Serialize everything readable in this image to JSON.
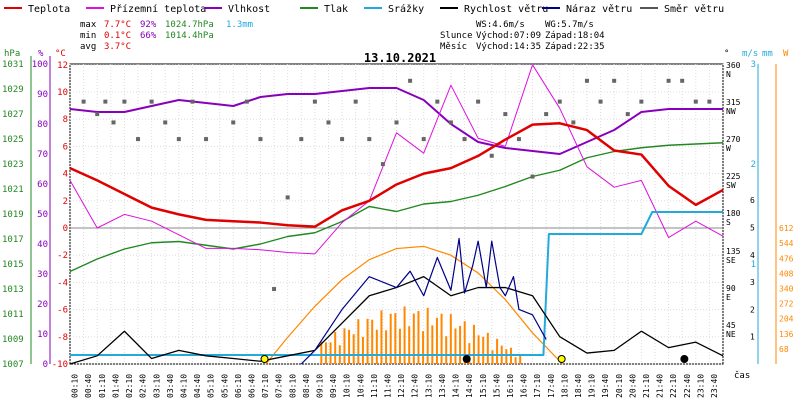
{
  "chart_data": {
    "type": "line",
    "title": "13.10.2021",
    "legend": [
      {
        "label": "Teplota",
        "color": "#e00000"
      },
      {
        "label": "Přízemní teplota",
        "color": "#dd11dd"
      },
      {
        "label": "Vlhkost",
        "color": "#8800bb"
      },
      {
        "label": "Tlak",
        "color": "#228822"
      },
      {
        "label": "Srážky",
        "color": "#22aadd"
      },
      {
        "label": "Rychlost větru",
        "color": "#000000"
      },
      {
        "label": "Náraz větru",
        "color": "#000088"
      },
      {
        "label": "Směr větru",
        "color": "#555555"
      }
    ],
    "stats": {
      "rows": [
        {
          "label": "max",
          "temp": "7.7°C",
          "hum": "92%",
          "press": "1024.7hPa",
          "rain": "1.3mm"
        },
        {
          "label": "min",
          "temp": "0.1°C",
          "hum": "66%",
          "press": "1014.4hPa",
          "rain": ""
        },
        {
          "label": "avg",
          "temp": "3.7°C",
          "hum": "",
          "press": "",
          "rain": ""
        }
      ],
      "ws": "WS:4.6m/s",
      "wg": "WG:5.7m/s",
      "sun_label": "Slunce",
      "sunrise": "Východ:07:09",
      "sunset": "Západ:18:04",
      "moon_label": "Měsíc",
      "moonrise": "Východ:14:35",
      "moonset": "Západ:22:35"
    },
    "axes": {
      "hpa": {
        "unit": "hPa",
        "color": "#228822",
        "ticks": [
          "1031",
          "1029",
          "1027",
          "1025",
          "1023",
          "1021",
          "1019",
          "1017",
          "1015",
          "1013",
          "1011",
          "1009",
          "1007"
        ]
      },
      "pct": {
        "unit": "%",
        "color": "#8800bb",
        "ticks": [
          "100",
          "90",
          "80",
          "70",
          "60",
          "50",
          "40",
          "30",
          "20",
          "10",
          "0"
        ]
      },
      "degc": {
        "unit": "°C",
        "color": "#e00000",
        "ticks": [
          "12",
          "10",
          "8",
          "6",
          "4",
          "2",
          "0",
          "-2",
          "-4",
          "-6",
          "-8",
          "-10"
        ]
      },
      "dir": {
        "unit": "°",
        "ticks": [
          "360",
          "N",
          "315",
          "NW",
          "270",
          "W",
          "225",
          "SW",
          "180",
          "S",
          "135",
          "SE",
          "90",
          "E",
          "45",
          "NE"
        ]
      },
      "ms": {
        "unit": "m/s",
        "color": "#22aadd",
        "ticks": [
          "3",
          "2",
          "1"
        ]
      },
      "mm": {
        "unit": "mm",
        "color": "#22aadd",
        "ticks": [
          "1",
          "0"
        ]
      },
      "w": {
        "unit": "W",
        "color": "#ff8800",
        "ticks": [
          "612",
          "544",
          "476",
          "408",
          "340",
          "272",
          "204",
          "136",
          "68"
        ]
      },
      "wind_ticks": [
        "6",
        "5",
        "4",
        "3",
        "2",
        "1"
      ],
      "xlabel": "čas",
      "x_ticks": [
        "00:10",
        "00:40",
        "01:10",
        "01:40",
        "02:10",
        "02:40",
        "03:10",
        "03:40",
        "04:10",
        "04:40",
        "05:10",
        "05:40",
        "06:10",
        "06:40",
        "07:10",
        "07:40",
        "08:10",
        "08:40",
        "09:10",
        "09:40",
        "10:10",
        "10:40",
        "11:10",
        "11:40",
        "12:10",
        "12:40",
        "13:10",
        "13:40",
        "14:10",
        "14:40",
        "15:10",
        "15:40",
        "16:10",
        "16:40",
        "17:10",
        "17:40",
        "18:10",
        "18:40",
        "19:10",
        "19:40",
        "20:10",
        "20:40",
        "21:10",
        "21:40",
        "22:10",
        "22:40",
        "23:10",
        "23:40"
      ]
    },
    "series": {
      "temperature": {
        "name": "Teplota",
        "unit": "°C",
        "x": [
          0,
          1,
          2,
          3,
          4,
          5,
          6,
          7,
          8,
          9,
          10,
          11,
          12,
          13,
          14,
          15,
          16,
          17,
          18,
          19,
          20,
          21,
          22,
          23,
          24
        ],
        "values": [
          4.4,
          3.5,
          2.5,
          1.5,
          1.0,
          0.6,
          0.5,
          0.4,
          0.2,
          0.1,
          1.3,
          2.0,
          3.2,
          4.0,
          4.4,
          5.3,
          6.5,
          7.6,
          7.7,
          7.2,
          5.7,
          5.4,
          3.1,
          1.7,
          2.8
        ]
      },
      "ground_temperature": {
        "name": "Přízemní teplota",
        "unit": "°C",
        "x": [
          0,
          1,
          2,
          3,
          4,
          5,
          6,
          7,
          8,
          9,
          10,
          11,
          12,
          13,
          14,
          15,
          16,
          17,
          18,
          19,
          20,
          21,
          22,
          23,
          24
        ],
        "values": [
          3.5,
          0.0,
          1.0,
          0.5,
          -0.5,
          -1.5,
          -1.5,
          -1.6,
          -1.8,
          -1.9,
          0.4,
          2.0,
          7.0,
          5.5,
          10.5,
          6.6,
          6.0,
          12.0,
          8.8,
          4.5,
          3.0,
          3.5,
          -0.7,
          0.5,
          -0.6
        ]
      },
      "humidity": {
        "name": "Vlhkost",
        "unit": "%",
        "x": [
          0,
          1,
          2,
          3,
          4,
          5,
          6,
          7,
          8,
          9,
          10,
          11,
          12,
          13,
          14,
          15,
          16,
          17,
          18,
          19,
          20,
          21,
          22,
          23,
          24
        ],
        "values": [
          85,
          84,
          84,
          86,
          88,
          87,
          86,
          89,
          90,
          90,
          91,
          92,
          92,
          88,
          80,
          74,
          72,
          71,
          70,
          74,
          78,
          84,
          85,
          85,
          85
        ]
      },
      "pressure": {
        "name": "Tlak",
        "unit": "hPa",
        "x": [
          0,
          1,
          2,
          3,
          4,
          5,
          6,
          7,
          8,
          9,
          10,
          11,
          12,
          13,
          14,
          15,
          16,
          17,
          18,
          19,
          20,
          21,
          22,
          23,
          24
        ],
        "values": [
          1014.4,
          1015.4,
          1016.2,
          1016.7,
          1016.8,
          1016.5,
          1016.2,
          1016.6,
          1017.2,
          1017.5,
          1018.4,
          1019.6,
          1019.2,
          1019.8,
          1020.0,
          1020.5,
          1021.2,
          1022.0,
          1022.5,
          1023.5,
          1024.0,
          1024.3,
          1024.5,
          1024.6,
          1024.7
        ]
      },
      "rain": {
        "name": "Srážky",
        "unit": "mm",
        "x": [
          0,
          17.4,
          17.6,
          18.0,
          21.0,
          21.4,
          24.0
        ],
        "values": [
          0,
          0,
          1.1,
          1.1,
          1.1,
          1.3,
          1.3
        ]
      },
      "solar": {
        "name": "Slunce",
        "unit": "W",
        "x": [
          7.2,
          8,
          9,
          10,
          11,
          12,
          13,
          14,
          15,
          16,
          17,
          18.1
        ],
        "values": [
          0,
          120,
          260,
          380,
          470,
          520,
          530,
          490,
          410,
          290,
          140,
          0
        ]
      },
      "wind_speed": {
        "name": "Rychlost větru",
        "unit": "m/s",
        "x": [
          0,
          1,
          2,
          3,
          4,
          5,
          6,
          7,
          8,
          9,
          10,
          11,
          12,
          13,
          14,
          15,
          16,
          17,
          18,
          19,
          20,
          21,
          22,
          23,
          24
        ],
        "values": [
          0,
          0.3,
          1.2,
          0.2,
          0.5,
          0.3,
          0.2,
          0.1,
          0.3,
          0.5,
          1.5,
          2.5,
          2.8,
          3.2,
          2.5,
          2.8,
          2.8,
          2.5,
          1.0,
          0.4,
          0.5,
          1.2,
          0.6,
          0.8,
          0.3
        ]
      },
      "wind_gust": {
        "name": "Náraz větru",
        "unit": "m/s",
        "x": [
          8.5,
          9,
          10,
          11,
          12,
          12.5,
          13,
          13.5,
          14,
          14.3,
          14.5,
          14.8,
          15,
          15.3,
          15.5,
          15.8,
          16,
          16.3,
          16.5,
          17,
          17.5
        ],
        "values": [
          0,
          0.5,
          2.0,
          3.2,
          2.8,
          3.4,
          2.5,
          3.9,
          2.7,
          4.6,
          2.6,
          3.6,
          4.5,
          2.8,
          4.5,
          2.8,
          2.5,
          3.2,
          2.0,
          1.8,
          0.9
        ]
      },
      "wind_direction": {
        "name": "Směr větru",
        "unit": "°",
        "x": [
          0.5,
          1,
          1.3,
          1.6,
          2,
          2.5,
          3,
          3.5,
          4,
          4.5,
          5,
          6,
          6.5,
          7,
          7.5,
          8,
          8.5,
          9,
          9.5,
          10,
          10.5,
          11,
          11.5,
          12,
          12.5,
          13,
          13.5,
          14,
          14.5,
          15,
          15.5,
          16,
          16.5,
          17,
          17.5,
          18,
          18.5,
          19,
          19.5,
          20,
          20.5,
          21,
          22,
          22.5,
          23,
          23.5
        ],
        "values": [
          315,
          300,
          315,
          290,
          315,
          270,
          315,
          290,
          270,
          315,
          270,
          290,
          315,
          270,
          90,
          200,
          270,
          315,
          290,
          270,
          315,
          270,
          240,
          290,
          340,
          270,
          315,
          290,
          270,
          315,
          250,
          300,
          270,
          225,
          300,
          315,
          290,
          340,
          315,
          340,
          300,
          315,
          340,
          340,
          315,
          315
        ]
      }
    },
    "markers": [
      {
        "label": "sunrise",
        "x": 7.15,
        "color": "#ffff00"
      },
      {
        "label": "sunset",
        "x": 18.07,
        "color": "#ffff00"
      },
      {
        "label": "moonrise",
        "x": 14.58,
        "color": "#000000"
      },
      {
        "label": "moonset",
        "x": 22.58,
        "color": "#000000"
      }
    ]
  }
}
